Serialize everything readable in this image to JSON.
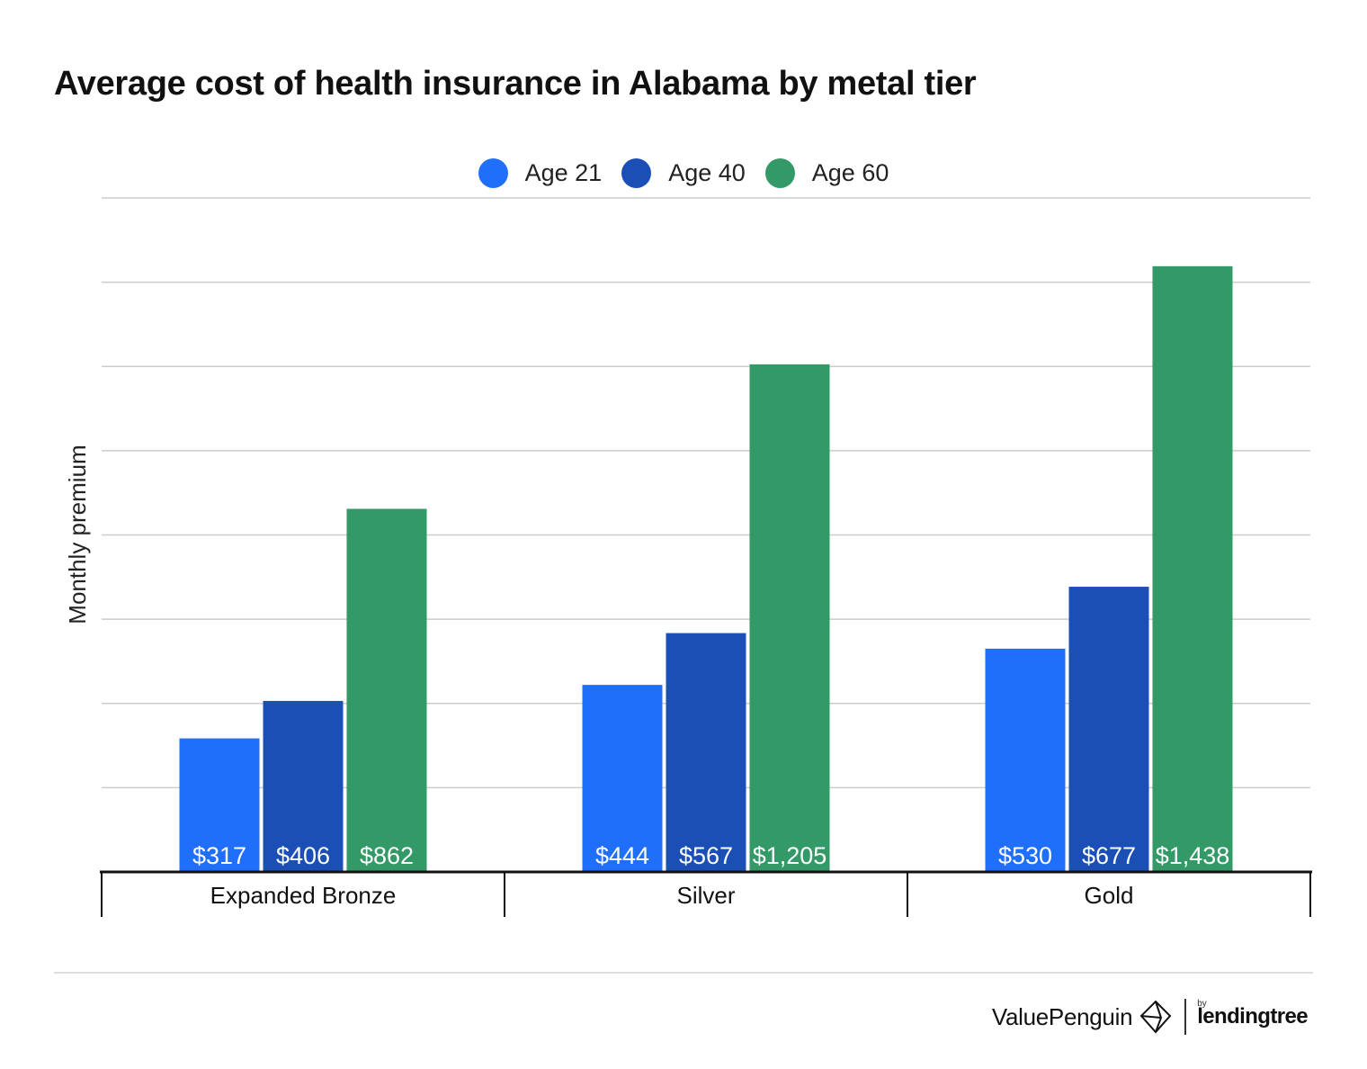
{
  "title": "Average cost of health insurance in Alabama by metal tier",
  "legend": [
    {
      "label": "Age 21",
      "color": "#1f6ffb"
    },
    {
      "label": "Age 40",
      "color": "#1b4fb5"
    },
    {
      "label": "Age 60",
      "color": "#339966"
    }
  ],
  "chart_data": {
    "type": "bar",
    "title": "Average cost of health insurance in Alabama by metal tier",
    "categories": [
      "Expanded Bronze",
      "Silver",
      "Gold"
    ],
    "series": [
      {
        "name": "Age 21",
        "color": "#1f6ffb",
        "values": [
          317,
          444,
          530
        ],
        "labels": [
          "$317",
          "$444",
          "$530"
        ]
      },
      {
        "name": "Age 40",
        "color": "#1b4fb5",
        "values": [
          406,
          567,
          677
        ],
        "labels": [
          "$406",
          "$567",
          "$677"
        ]
      },
      {
        "name": "Age 60",
        "color": "#339966",
        "values": [
          862,
          1205,
          1438
        ],
        "labels": [
          "$862",
          "$1,205",
          "$1,438"
        ]
      }
    ],
    "xlabel": "",
    "ylabel": "Monthly premium",
    "ylim": [
      0,
      1600
    ],
    "grid": true,
    "legend_position": "top-center"
  },
  "branding": {
    "valuepenguin": "ValuePenguin",
    "by": "by",
    "lendingtree": "lendingtree"
  }
}
